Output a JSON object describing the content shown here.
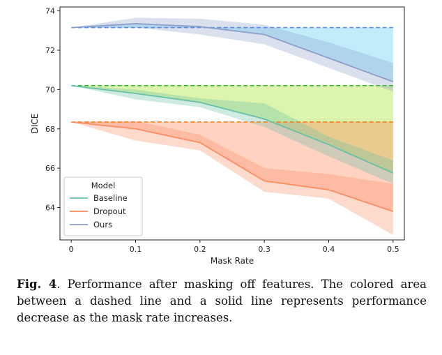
{
  "chart_data": {
    "type": "line",
    "xlabel": "Mask Rate",
    "ylabel": "DICE",
    "x": [
      0,
      0.1,
      0.2,
      0.3,
      0.4,
      0.5
    ],
    "xticks": [
      0,
      0.1,
      0.2,
      0.3,
      0.4,
      0.5
    ],
    "xtick_labels": [
      "0",
      "0.1",
      "0.2",
      "0.3",
      "0.4",
      "0.5"
    ],
    "xlim": [
      -0.0175,
      0.5175
    ],
    "yticks": [
      64,
      66,
      68,
      70,
      72,
      74
    ],
    "ylim": [
      62.35,
      74.2
    ],
    "grid": false,
    "legend": {
      "title": "Model",
      "placement": "lower-left"
    },
    "series": [
      {
        "name": "Baseline",
        "color": "#66c2a5",
        "values": [
          70.2,
          69.8,
          69.35,
          68.5,
          67.2,
          65.75
        ],
        "ci_lower": [
          70.2,
          69.5,
          69.1,
          68.1,
          66.6,
          65.2
        ],
        "ci_upper": [
          70.2,
          70.0,
          69.55,
          69.3,
          67.6,
          66.4
        ],
        "baseline": 70.2,
        "fill_color": "#a6e32a"
      },
      {
        "name": "Dropout",
        "color": "#fc8d62",
        "values": [
          68.35,
          68.0,
          67.3,
          65.35,
          64.9,
          63.8
        ],
        "ci_lower": [
          68.35,
          67.4,
          66.9,
          64.8,
          64.45,
          62.6
        ],
        "ci_upper": [
          68.35,
          68.4,
          67.7,
          66.0,
          65.7,
          65.2
        ],
        "baseline": 68.35,
        "fill_color": "#ff8a5c"
      },
      {
        "name": "Ours",
        "color": "#8da0cb",
        "values": [
          73.15,
          73.35,
          73.2,
          72.8,
          71.6,
          70.4
        ],
        "ci_lower": [
          73.15,
          73.15,
          72.8,
          72.3,
          71.1,
          69.9
        ],
        "ci_upper": [
          73.15,
          73.65,
          73.6,
          73.3,
          72.4,
          71.35
        ],
        "baseline": 73.15,
        "fill_color": "#5ccff5"
      }
    ]
  },
  "caption": {
    "label": "Fig. 4",
    "text": ". Performance after masking off features. The colored area between a dashed line and a solid line represents performance decrease as the mask rate increases."
  }
}
